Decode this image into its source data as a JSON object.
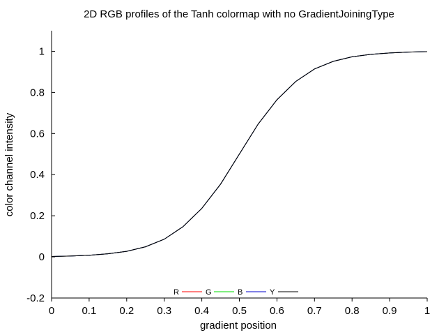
{
  "chart_data": {
    "type": "line",
    "title": "2D RGB profiles of the Tanh colormap with no GradientJoiningType",
    "xlabel": "gradient position",
    "ylabel": "color channel intensity",
    "xlim": [
      0,
      1
    ],
    "ylim": [
      -0.2,
      1.1
    ],
    "xticks": [
      "0",
      "0.1",
      "0.2",
      "0.3",
      "0.4",
      "0.5",
      "0.6",
      "0.7",
      "0.8",
      "0.9",
      "1"
    ],
    "yticks": [
      "-0.2",
      "0",
      "0.2",
      "0.4",
      "0.6",
      "0.8",
      "1"
    ],
    "grid": false,
    "legend_position": "bottom-center",
    "series": [
      {
        "name": "R",
        "color": "#ff0000",
        "x": [
          0,
          0.05,
          0.1,
          0.15,
          0.2,
          0.25,
          0.3,
          0.35,
          0.4,
          0.45,
          0.5,
          0.55,
          0.6,
          0.65,
          0.7,
          0.75,
          0.8,
          0.85,
          0.9,
          0.95,
          1
        ],
        "y": [
          0.002,
          0.004,
          0.008,
          0.015,
          0.027,
          0.049,
          0.086,
          0.147,
          0.236,
          0.354,
          0.5,
          0.646,
          0.764,
          0.853,
          0.914,
          0.951,
          0.973,
          0.985,
          0.992,
          0.996,
          0.998
        ]
      },
      {
        "name": "G",
        "color": "#00dd00",
        "x": [
          0,
          0.05,
          0.1,
          0.15,
          0.2,
          0.25,
          0.3,
          0.35,
          0.4,
          0.45,
          0.5,
          0.55,
          0.6,
          0.65,
          0.7,
          0.75,
          0.8,
          0.85,
          0.9,
          0.95,
          1
        ],
        "y": [
          0.002,
          0.004,
          0.008,
          0.015,
          0.027,
          0.049,
          0.086,
          0.147,
          0.236,
          0.354,
          0.5,
          0.646,
          0.764,
          0.853,
          0.914,
          0.951,
          0.973,
          0.985,
          0.992,
          0.996,
          0.998
        ]
      },
      {
        "name": "B",
        "color": "#0000cc",
        "x": [
          0,
          0.05,
          0.1,
          0.15,
          0.2,
          0.25,
          0.3,
          0.35,
          0.4,
          0.45,
          0.5,
          0.55,
          0.6,
          0.65,
          0.7,
          0.75,
          0.8,
          0.85,
          0.9,
          0.95,
          1
        ],
        "y": [
          0.002,
          0.004,
          0.008,
          0.015,
          0.027,
          0.049,
          0.086,
          0.147,
          0.236,
          0.354,
          0.5,
          0.646,
          0.764,
          0.853,
          0.914,
          0.951,
          0.973,
          0.985,
          0.992,
          0.996,
          0.998
        ]
      },
      {
        "name": "Y",
        "color": "#000000",
        "x": [
          0,
          0.05,
          0.1,
          0.15,
          0.2,
          0.25,
          0.3,
          0.35,
          0.4,
          0.45,
          0.5,
          0.55,
          0.6,
          0.65,
          0.7,
          0.75,
          0.8,
          0.85,
          0.9,
          0.95,
          1
        ],
        "y": [
          0.002,
          0.004,
          0.008,
          0.015,
          0.027,
          0.049,
          0.086,
          0.147,
          0.236,
          0.354,
          0.5,
          0.646,
          0.764,
          0.853,
          0.914,
          0.951,
          0.973,
          0.985,
          0.992,
          0.996,
          0.998
        ]
      }
    ]
  }
}
